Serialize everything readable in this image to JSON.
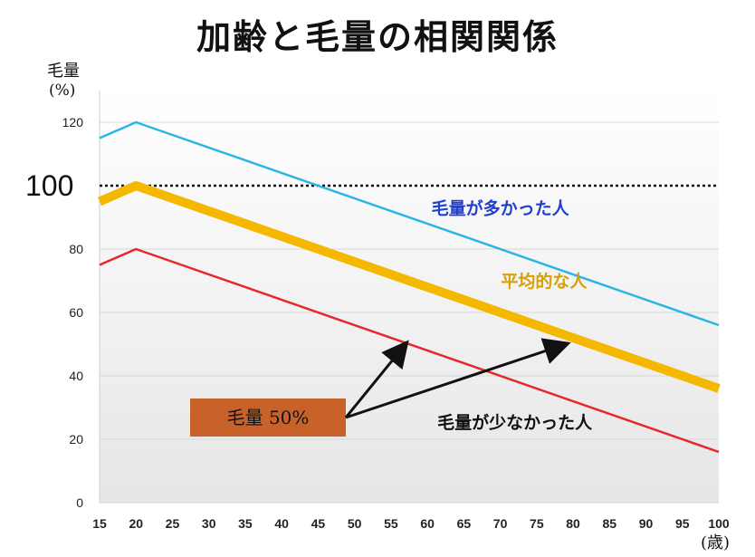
{
  "title": "加齢と毛量の相関関係",
  "y_label_line1": "毛量",
  "y_label_line2": "(%)",
  "x_unit": "(歳)",
  "colors": {
    "many": "#29b6e6",
    "average": "#f5b800",
    "few": "#e8262b",
    "reference_line": "#111111",
    "box_fill": "#c8622a",
    "many_label": "#1f3fcf",
    "average_label": "#d8a000",
    "few_label": "#111111"
  },
  "chart_data": {
    "type": "line",
    "xlim": [
      15,
      100
    ],
    "ylim": [
      0,
      125
    ],
    "x_ticks": [
      "15",
      "20",
      "25",
      "30",
      "35",
      "40",
      "45",
      "50",
      "55",
      "60",
      "65",
      "70",
      "75",
      "80",
      "85",
      "90",
      "95",
      "100"
    ],
    "y_ticks": [
      "0",
      "20",
      "40",
      "60",
      "80",
      "120"
    ],
    "reference_line": {
      "value": 100,
      "label": "100",
      "style": "dotted"
    },
    "series": [
      {
        "key": "many",
        "name": "毛量が多かった人",
        "points": [
          [
            15,
            115
          ],
          [
            20,
            120
          ],
          [
            25,
            116
          ],
          [
            100,
            56
          ]
        ]
      },
      {
        "key": "average",
        "name": "平均的な人",
        "points": [
          [
            15,
            95
          ],
          [
            20,
            100
          ],
          [
            25,
            96
          ],
          [
            100,
            36
          ]
        ]
      },
      {
        "key": "few",
        "name": "毛量が少なかった人",
        "points": [
          [
            15,
            75
          ],
          [
            20,
            80
          ],
          [
            25,
            76
          ],
          [
            100,
            16
          ]
        ]
      }
    ],
    "annotation": {
      "text": "毛量 50%",
      "arrow_targets": [
        [
          57,
          50
        ],
        [
          79,
          50
        ]
      ]
    }
  }
}
